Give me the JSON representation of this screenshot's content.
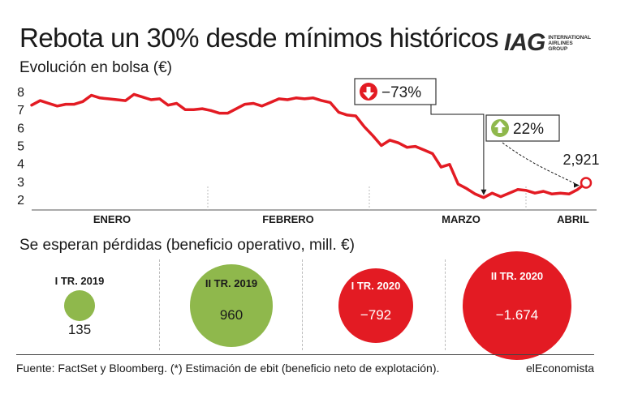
{
  "title": "Rebota un 30% desde mínimos históricos",
  "subtitle": "Evolución en bolsa (€)",
  "logo": {
    "main": "IAG",
    "line1": "INTERNATIONAL",
    "line2": "AIRLINES",
    "line3": "GROUP"
  },
  "chart_data": [
    {
      "type": "line",
      "ylim": [
        1.5,
        8.5
      ],
      "yticks": [
        2,
        3,
        4,
        5,
        6,
        7,
        8
      ],
      "grid": false,
      "month_labels": [
        "ENERO",
        "FEBRERO",
        "MARZO",
        "ABRIL"
      ],
      "series": [
        {
          "values": [
            7.25,
            7.5,
            7.35,
            7.2,
            7.3,
            7.3,
            7.45,
            7.8,
            7.65,
            7.6,
            7.55,
            7.5,
            7.85,
            7.7,
            7.55,
            7.6,
            7.25,
            7.35,
            7.0,
            7.0,
            7.05,
            6.95,
            6.8,
            6.8,
            7.05,
            7.3,
            7.35,
            7.2,
            7.4,
            7.6,
            7.55,
            7.65,
            7.6,
            7.65,
            7.5,
            7.4,
            6.85,
            6.7,
            6.65,
            6.05,
            5.55,
            5.0,
            5.3,
            5.15,
            4.9,
            4.95,
            4.75,
            4.55,
            3.8,
            3.95,
            2.85,
            2.6,
            2.3,
            2.1,
            2.35,
            2.15,
            2.35,
            2.55,
            2.5,
            2.35,
            2.45,
            2.3,
            2.35,
            2.3,
            2.55,
            2.921
          ]
        }
      ],
      "annotations": [
        {
          "text": "−73%",
          "direction": "down"
        },
        {
          "text": "22%",
          "direction": "up"
        },
        {
          "text": "2,921"
        }
      ]
    },
    {
      "type": "bubble",
      "title": "Se esperan pérdidas (beneficio operativo, mill. €)",
      "categories": [
        "I TR. 2019",
        "II TR. 2019",
        "I TR. 2020",
        "II TR. 2020"
      ],
      "values": [
        135,
        960,
        -792,
        -1674
      ],
      "display_values": [
        "135",
        "960",
        "−792",
        "−1.674"
      ],
      "colors": [
        "#8fb84c",
        "#8fb84c",
        "#e31b23",
        "#e31b23"
      ]
    }
  ],
  "colors": {
    "line": "#e31b23",
    "positive": "#8fb84c",
    "negative": "#e31b23",
    "text": "#1a1a1a"
  },
  "footer": {
    "source": "Fuente: FactSet y Bloomberg. (*) Estimación de ebit (beneficio neto de explotación).",
    "brand": "elEconomista"
  }
}
